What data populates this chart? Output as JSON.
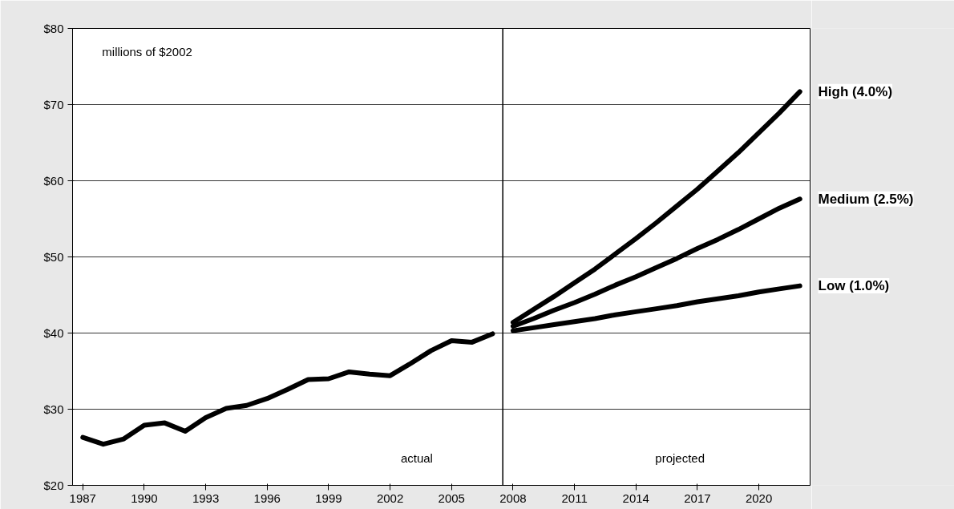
{
  "chart_data": {
    "type": "line",
    "annotations": [
      "millions of $2002",
      "actual",
      "projected"
    ],
    "series": [
      {
        "color": "#000000",
        "x": [
          1987,
          1988,
          1989,
          1990,
          1991,
          1992,
          1993,
          1994,
          1995,
          1996,
          1997,
          1998,
          1999,
          2000,
          2001,
          2002,
          2003,
          2004,
          2005,
          2006,
          2007
        ],
        "values": [
          26.3,
          25.4,
          26.1,
          27.9,
          28.2,
          27.1,
          28.9,
          30.1,
          30.5,
          31.4,
          32.6,
          33.9,
          34.0,
          34.9,
          34.6,
          34.4,
          36.0,
          37.7,
          39.0,
          38.8,
          39.9
        ]
      },
      {
        "name": "High (4.0%)",
        "color": "#000000",
        "x": [
          2008,
          2009,
          2010,
          2011,
          2012,
          2013,
          2014,
          2015,
          2016,
          2017,
          2018,
          2019,
          2020,
          2021,
          2022
        ],
        "values": [
          41.4,
          43.1,
          44.8,
          46.6,
          48.4,
          50.4,
          52.4,
          54.5,
          56.7,
          58.9,
          61.3,
          63.7,
          66.3,
          68.9,
          71.7
        ]
      },
      {
        "name": "Medium (2.5%)",
        "color": "#000000",
        "x": [
          2008,
          2009,
          2010,
          2011,
          2012,
          2013,
          2014,
          2015,
          2016,
          2017,
          2018,
          2019,
          2020,
          2021,
          2022
        ],
        "values": [
          40.9,
          41.9,
          43.0,
          44.0,
          45.1,
          46.3,
          47.4,
          48.6,
          49.8,
          51.1,
          52.3,
          53.6,
          55.0,
          56.4,
          57.6
        ]
      },
      {
        "name": "Low (1.0%)",
        "color": "#000000",
        "x": [
          2008,
          2009,
          2010,
          2011,
          2012,
          2013,
          2014,
          2015,
          2016,
          2017,
          2018,
          2019,
          2020,
          2021,
          2022
        ],
        "values": [
          40.3,
          40.7,
          41.1,
          41.5,
          41.9,
          42.4,
          42.8,
          43.2,
          43.6,
          44.1,
          44.5,
          44.9,
          45.4,
          45.8,
          46.2
        ]
      }
    ],
    "xlim": [
      1986.5,
      2022.5
    ],
    "xticks": [
      1987,
      1990,
      1993,
      1996,
      1999,
      2002,
      2005,
      2008,
      2011,
      2014,
      2017,
      2020
    ],
    "ylim": [
      20,
      80
    ],
    "yticks": [
      {
        "value": 20,
        "label": "$20"
      },
      {
        "value": 30,
        "label": "$30"
      },
      {
        "value": 40,
        "label": "$40"
      },
      {
        "value": 50,
        "label": "$50"
      },
      {
        "value": 60,
        "label": "$60"
      },
      {
        "value": 70,
        "label": "$70"
      },
      {
        "value": 80,
        "label": "$80"
      }
    ],
    "ref_lines": [
      {
        "axis": "x",
        "value": 2007.5,
        "color": "#000000"
      }
    ],
    "grid": "y",
    "marker": "none",
    "line_style": "solid"
  }
}
